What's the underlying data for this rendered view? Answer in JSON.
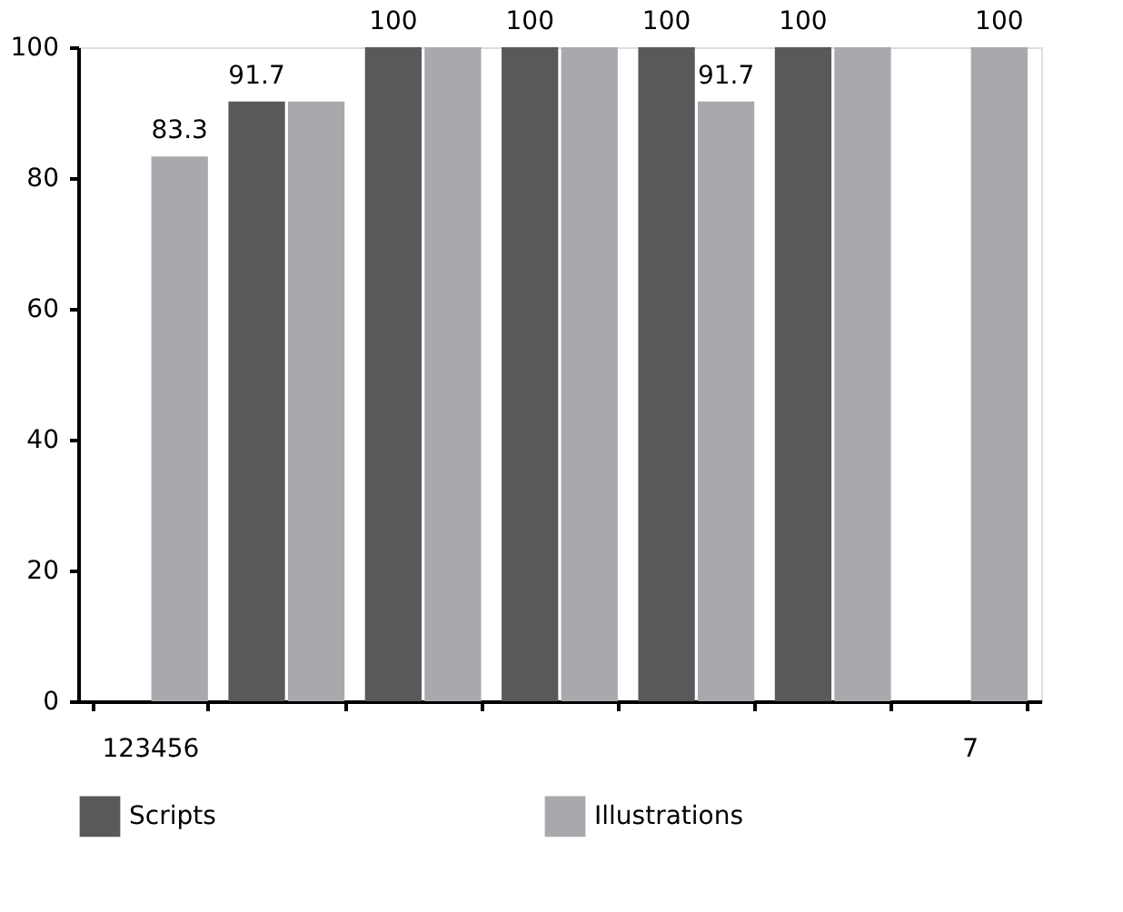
{
  "chart_data": {
    "type": "bar",
    "categories": [
      "123456",
      null,
      null,
      null,
      null,
      null,
      "7"
    ],
    "series": [
      {
        "name": "Scripts",
        "color": "#58595b",
        "values": [
          null,
          91.7,
          100,
          100,
          100,
          100,
          null
        ],
        "value_labels": [
          null,
          "91.7",
          "100",
          "100",
          "100",
          "100",
          null
        ]
      },
      {
        "name": "Illustrations",
        "color": "#a7a9ac",
        "values": [
          83.3,
          91.7,
          100,
          100,
          91.7,
          100,
          100
        ],
        "value_labels": [
          "83.3",
          null,
          null,
          null,
          "91.7",
          null,
          "100"
        ]
      }
    ],
    "ylim": [
      0,
      100
    ],
    "yticks": [
      0,
      20,
      40,
      60,
      80,
      100
    ],
    "grid": false,
    "legend": "bottom"
  }
}
